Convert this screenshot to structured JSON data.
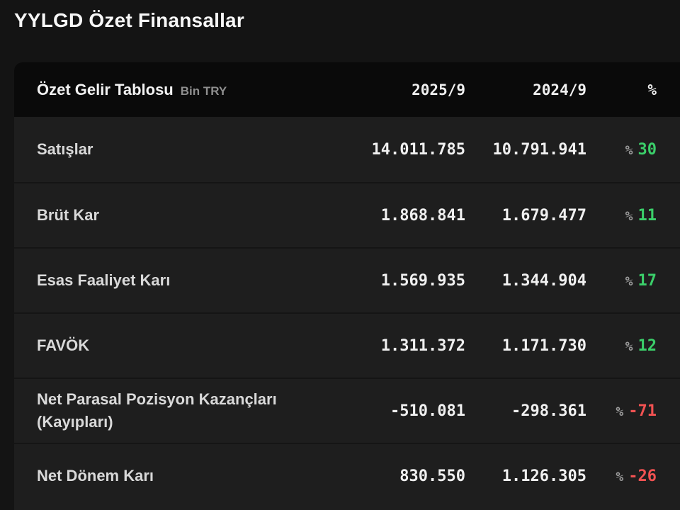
{
  "page": {
    "title": "YYLGD Özet Finansallar"
  },
  "table": {
    "title": "Özet Gelir Tablosu",
    "unit": "Bin TRY",
    "percent_symbol": "%",
    "columns": {
      "col1": "2025/9",
      "col2": "2024/9",
      "col3": "%"
    },
    "rows": [
      {
        "label": "Satışlar",
        "v2025": "14.011.785",
        "v2024": "10.791.941",
        "pct": "30",
        "trend": "up"
      },
      {
        "label": "Brüt Kar",
        "v2025": "1.868.841",
        "v2024": "1.679.477",
        "pct": "11",
        "trend": "up"
      },
      {
        "label": "Esas Faaliyet Karı",
        "v2025": "1.569.935",
        "v2024": "1.344.904",
        "pct": "17",
        "trend": "up"
      },
      {
        "label": "FAVÖK",
        "v2025": "1.311.372",
        "v2024": "1.171.730",
        "pct": "12",
        "trend": "up"
      },
      {
        "label": "Net Parasal Pozisyon Kazançları (Kayıpları)",
        "v2025": "-510.081",
        "v2024": "-298.361",
        "pct": "-71",
        "trend": "down"
      },
      {
        "label": "Net Dönem Karı",
        "v2025": "830.550",
        "v2024": "1.126.305",
        "pct": "-26",
        "trend": "down"
      }
    ]
  },
  "colors": {
    "positive": "#3bcf6a",
    "negative": "#f15252",
    "card_background": "#1e1e1e",
    "header_background": "#0a0a0a",
    "page_background": "#141414"
  }
}
